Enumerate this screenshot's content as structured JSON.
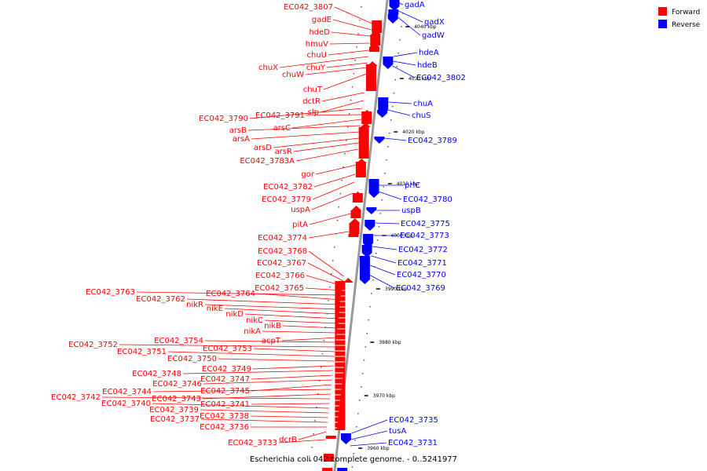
{
  "caption": "Escherichia coli 042 complete genome. - 0..5241977",
  "colors": {
    "forward": "#ff0000",
    "reverse": "#0000ff",
    "backbone": "#999999"
  },
  "legend": [
    {
      "label": "Forward",
      "color": "#ff0000"
    },
    {
      "label": "Reverse",
      "color": "#0000ff"
    }
  ],
  "ticks": [
    "4040 kbp",
    "4030 kbp",
    "4020 kbp",
    "4010 kbp",
    "4000 kbp",
    "3990 kbp",
    "3980 kbp",
    "3970 kbp",
    "3960 kbp"
  ],
  "forward_genes": [
    "EC042_3807",
    "gadE",
    "hdeD",
    "hmuV",
    "chuU",
    "chuX",
    "chuY",
    "chuW",
    "chuT",
    "dctR",
    "slp",
    "EC042_3790",
    "EC042_3791",
    "arsC",
    "arsB",
    "arsA",
    "arsD",
    "arsR",
    "EC042_3783A",
    "gor",
    "EC042_3782",
    "EC042_3779",
    "uspA",
    "pitA",
    "EC042_3774",
    "EC042_3768",
    "EC042_3767",
    "EC042_3766",
    "EC042_3765",
    "EC042_3763",
    "EC042_3764",
    "EC042_3762",
    "nikR",
    "nikE",
    "nikD",
    "nikC",
    "nikB",
    "nikA",
    "acpT",
    "EC042_3754",
    "EC042_3752",
    "EC042_3753",
    "EC042_3751",
    "EC042_3750",
    "EC042_3749",
    "EC042_3748",
    "EC042_3747",
    "EC042_3746",
    "EC042_3745",
    "EC042_3744",
    "EC042_3743",
    "EC042_3742",
    "EC042_3741",
    "EC042_3740",
    "EC042_3739",
    "EC042_3738",
    "EC042_3737",
    "EC042_3736",
    "dcrB",
    "EC042_3733"
  ],
  "reverse_genes": [
    "gadA",
    "gadX",
    "gadW",
    "hdeA",
    "hdeB",
    "EC042_3802",
    "chuA",
    "chuS",
    "EC042_3789",
    "prlC",
    "EC042_3780",
    "uspB",
    "EC042_3775",
    "EC042_3773",
    "EC042_3772",
    "EC042_3771",
    "EC042_3770",
    "EC042_3769",
    "EC042_3735",
    "tusA",
    "EC042_3731"
  ]
}
